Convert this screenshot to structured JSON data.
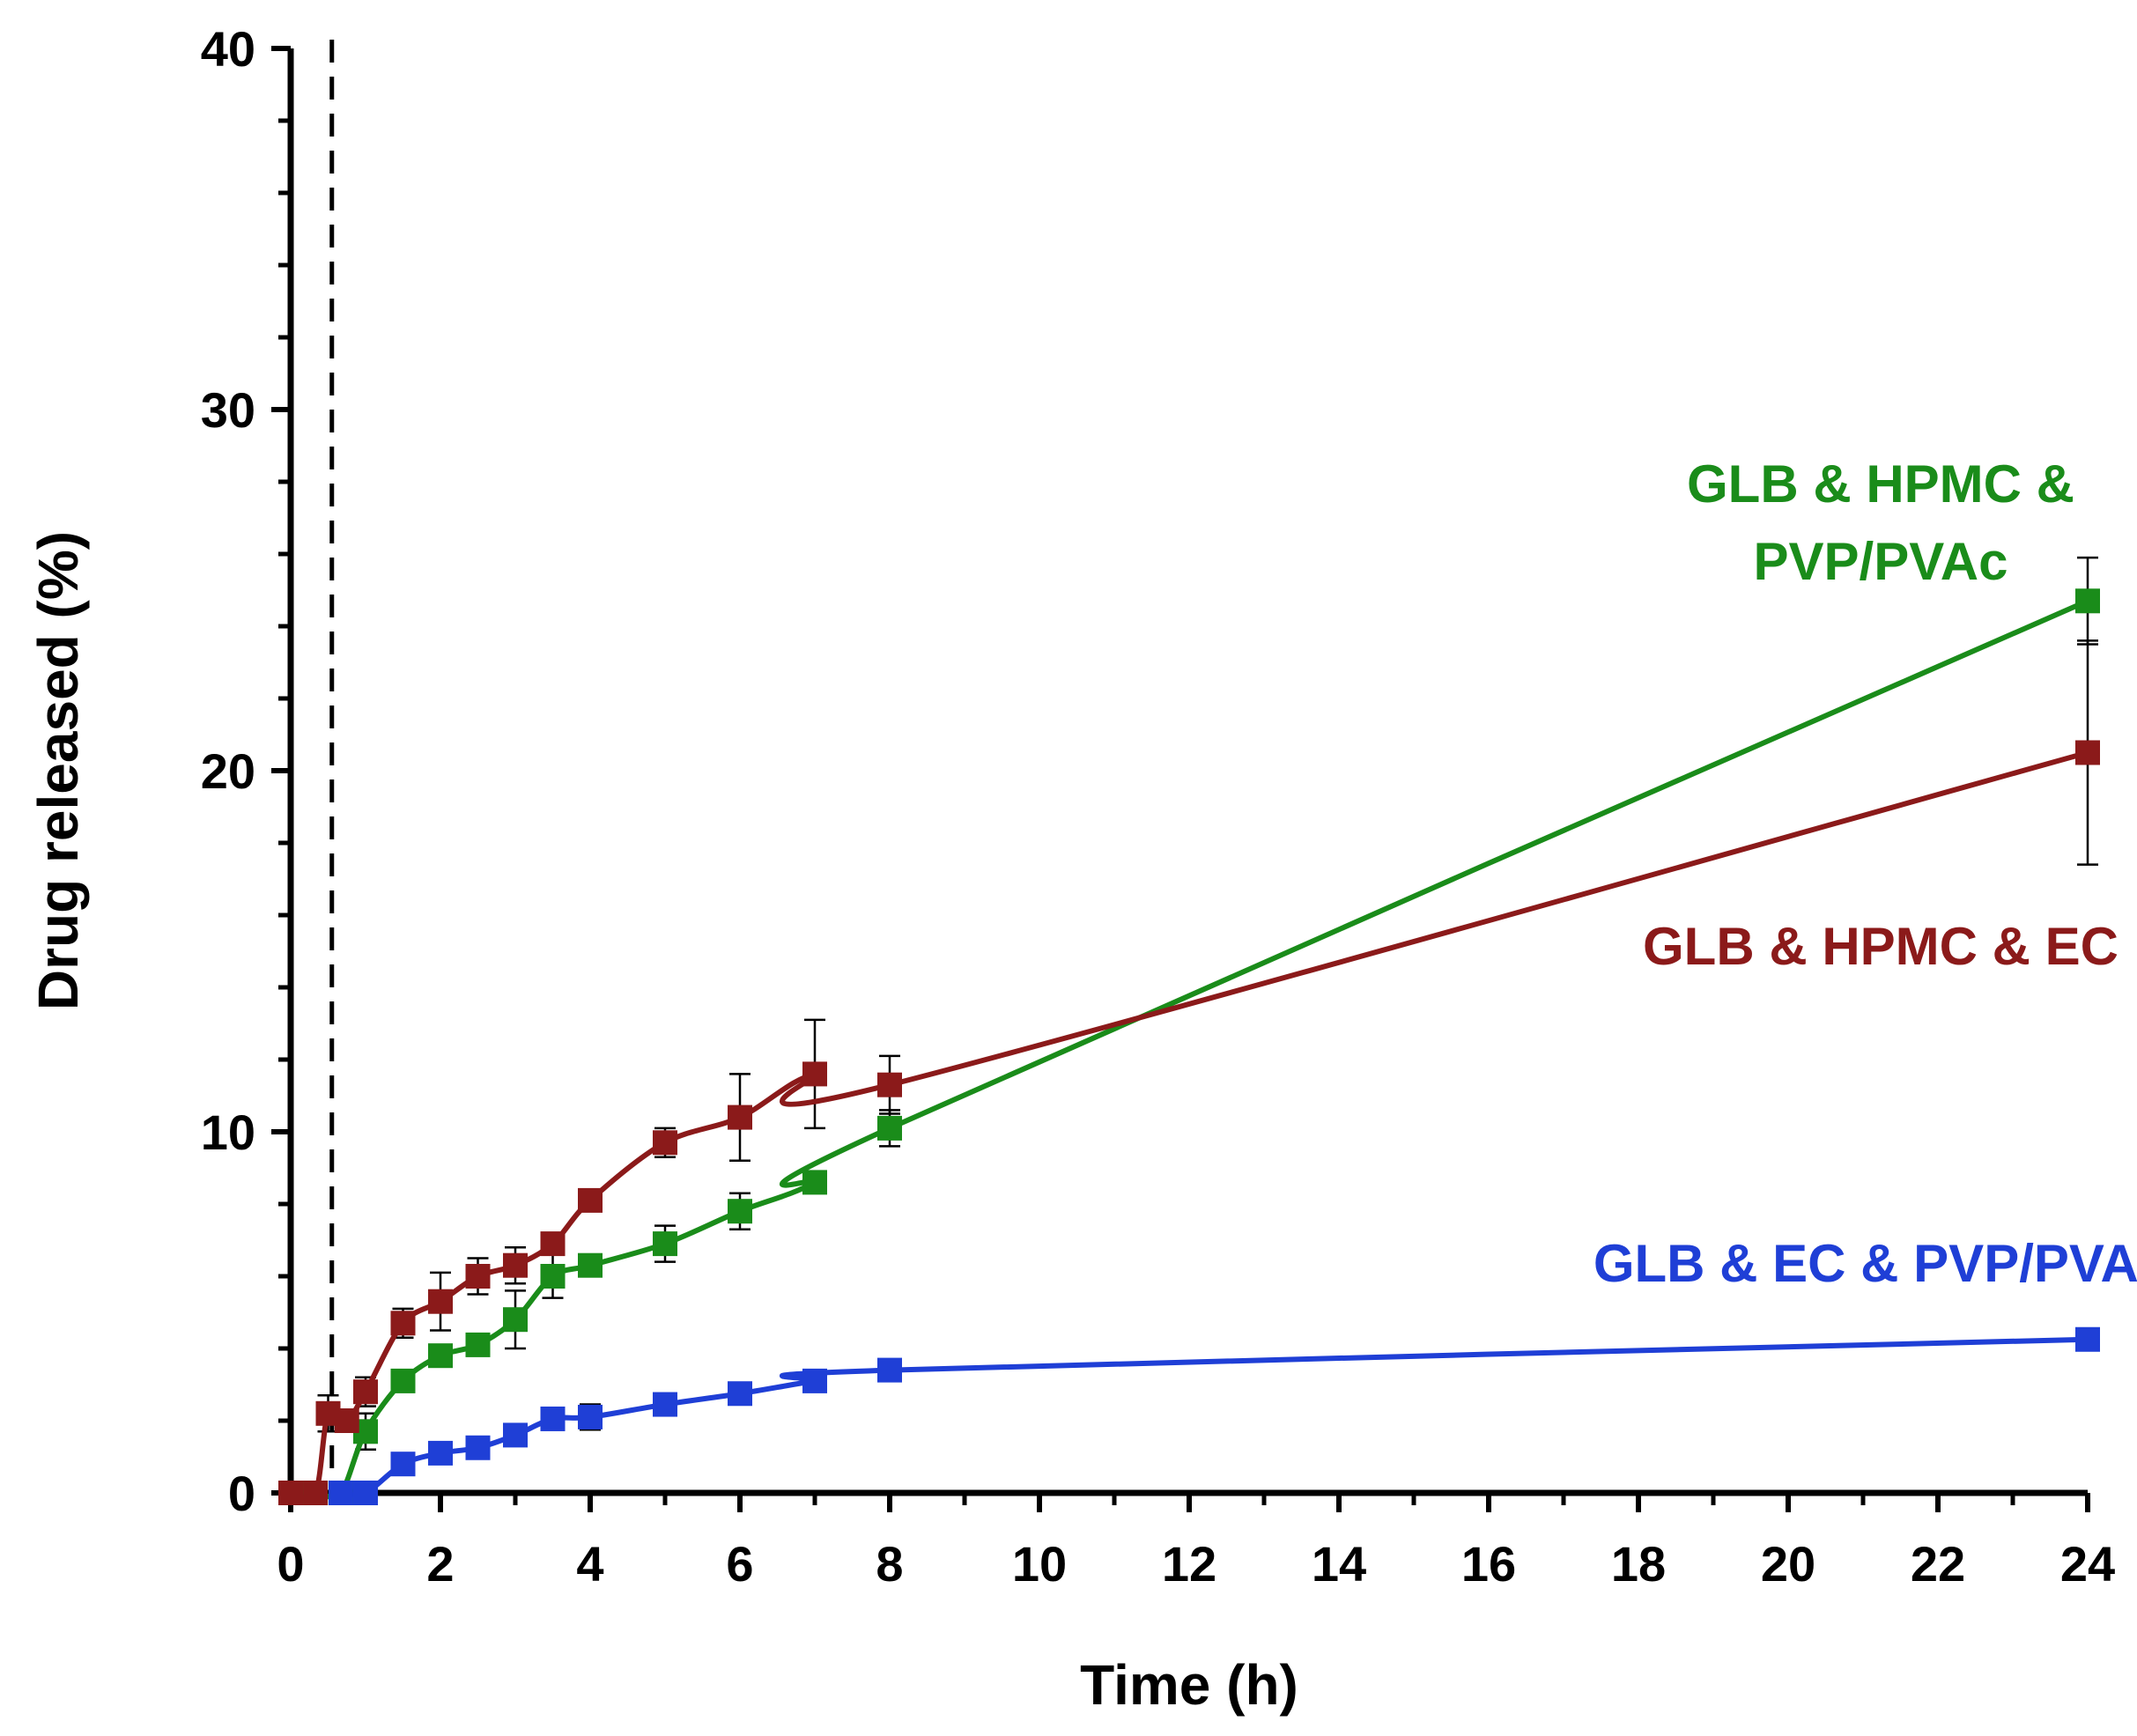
{
  "chart_data": {
    "type": "line",
    "title": "",
    "xlabel": "Time (h)",
    "ylabel": "Drug released (%)",
    "xlim": [
      0,
      24
    ],
    "ylim": [
      0,
      40
    ],
    "grid": false,
    "x_ticks": [
      0,
      2,
      4,
      6,
      8,
      10,
      12,
      14,
      16,
      18,
      20,
      22,
      24
    ],
    "y_ticks": [
      0,
      10,
      20,
      30,
      40
    ],
    "vertical_reference_line_x": 0.55,
    "series": [
      {
        "name": "GLB & HPMC & PVP/PVAc",
        "label_lines": [
          "GLB & HPMC &",
          "PVP/PVAc"
        ],
        "color": "#1a8c1a",
        "x": [
          0,
          0.33,
          0.67,
          1,
          1.5,
          2,
          2.5,
          3,
          3.5,
          4,
          5,
          6,
          7,
          8,
          24
        ],
        "y": [
          0,
          0,
          0,
          1.7,
          3.1,
          3.8,
          4.1,
          4.8,
          6.0,
          6.3,
          6.9,
          7.8,
          8.6,
          10.1,
          24.7
        ],
        "err": [
          0,
          0,
          0,
          0.5,
          0.3,
          0.3,
          0.3,
          0.8,
          0.6,
          0.3,
          0.5,
          0.5,
          0.3,
          0.5,
          1.2
        ]
      },
      {
        "name": "GLB & HPMC & EC",
        "label_lines": [
          "GLB & HPMC & EC"
        ],
        "color": "#8b1a1a",
        "x": [
          0,
          0.33,
          0.5,
          0.75,
          1,
          1.5,
          2,
          2.5,
          3,
          3.5,
          4,
          5,
          6,
          7,
          8,
          24
        ],
        "y": [
          0,
          0,
          2.2,
          2.0,
          2.8,
          4.7,
          5.3,
          6.0,
          6.3,
          6.9,
          8.1,
          9.7,
          10.4,
          11.6,
          11.3,
          20.5
        ],
        "err": [
          0,
          0,
          0.5,
          0.3,
          0.4,
          0.4,
          0.8,
          0.5,
          0.5,
          0.3,
          0.3,
          0.4,
          1.2,
          1.5,
          0.8,
          3.1
        ]
      },
      {
        "name": "GLB & EC & PVP/PVAc",
        "label_lines": [
          "GLB & EC & PVP/PVAc"
        ],
        "color": "#1f3fd6",
        "x": [
          0.67,
          1,
          1.5,
          2,
          2.5,
          3,
          3.5,
          4,
          5,
          6,
          7,
          8,
          24
        ],
        "y": [
          0,
          0,
          0.8,
          1.1,
          1.25,
          1.6,
          2.05,
          2.1,
          2.45,
          2.75,
          3.1,
          3.4,
          4.25
        ],
        "err": [
          0,
          0,
          0.1,
          0.1,
          0.1,
          0.15,
          0.3,
          0.35,
          0.15,
          0.15,
          0.15,
          0.1,
          0.1
        ]
      }
    ]
  }
}
